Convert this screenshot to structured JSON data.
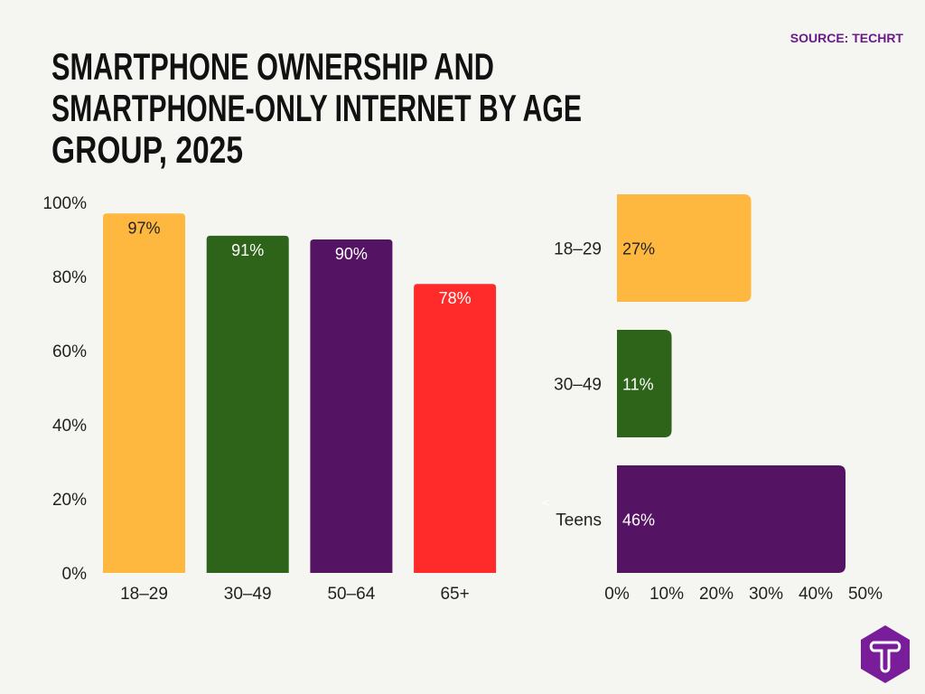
{
  "source": "SOURCE: TECHRT",
  "title_lines": [
    "SMARTPHONE OWNERSHIP AND",
    "SMARTPHONE-ONLY INTERNET BY AGE",
    "GROUP, 2025"
  ],
  "logo_letter": "T",
  "chart_data": [
    {
      "type": "bar",
      "orientation": "vertical",
      "categories": [
        "18–29",
        "30–49",
        "50–64",
        "65+"
      ],
      "values": [
        97,
        91,
        90,
        78
      ],
      "data_labels": [
        "97%",
        "91%",
        "90%",
        "78%"
      ],
      "colors": [
        "#ffb83f",
        "#2d6419",
        "#551463",
        "#ff2a2a"
      ],
      "label_colors": [
        "#222222",
        "#ffffff",
        "#ffffff",
        "#ffffff"
      ],
      "ylim": [
        0,
        100
      ],
      "yticks": [
        "0%",
        "20%",
        "40%",
        "60%",
        "80%",
        "100%"
      ],
      "grid": false
    },
    {
      "type": "bar",
      "orientation": "horizontal",
      "categories": [
        "18–29",
        "30–49",
        "Teens"
      ],
      "values": [
        27,
        11,
        46
      ],
      "data_labels": [
        "27%",
        "11%",
        "46%"
      ],
      "colors": [
        "#ffb83f",
        "#2d6419",
        "#551463"
      ],
      "label_colors": [
        "#222222",
        "#ffffff",
        "#ffffff"
      ],
      "xlim": [
        0,
        50
      ],
      "xticks": [
        "0%",
        "10%",
        "20%",
        "30%",
        "40%",
        "50%"
      ],
      "annotation": "<",
      "grid": false
    }
  ]
}
